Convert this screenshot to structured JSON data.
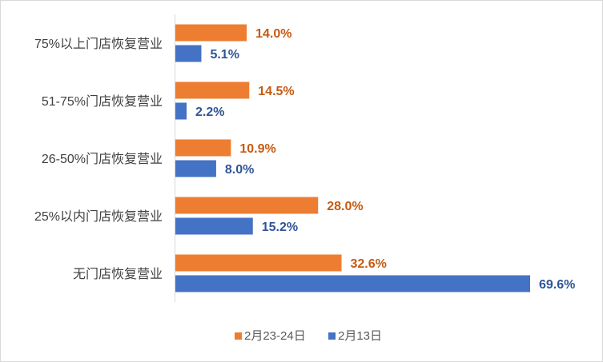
{
  "chart_data": {
    "type": "bar",
    "orientation": "horizontal",
    "categories": [
      "75%以上门店恢复营业",
      "51-75%门店恢复营业",
      "26-50%门店恢复营业",
      "25%以内门店恢复营业",
      "无门店恢复营业"
    ],
    "series": [
      {
        "name": "2月23-24日",
        "values": [
          14.0,
          14.5,
          10.9,
          28.0,
          32.6
        ],
        "labels": [
          "14.0%",
          "14.5%",
          "10.9%",
          "28.0%",
          "32.6%"
        ],
        "color": "#ED7D31",
        "label_color": "#C55A11"
      },
      {
        "name": "2月13日",
        "values": [
          5.1,
          2.2,
          8.0,
          15.2,
          69.6
        ],
        "labels": [
          "5.1%",
          "2.2%",
          "8.0%",
          "15.2%",
          "69.6%"
        ],
        "color": "#4472C4",
        "label_color": "#2F5597"
      }
    ],
    "xlim": [
      0,
      69.6
    ],
    "grid": false,
    "legend": "bottom"
  }
}
